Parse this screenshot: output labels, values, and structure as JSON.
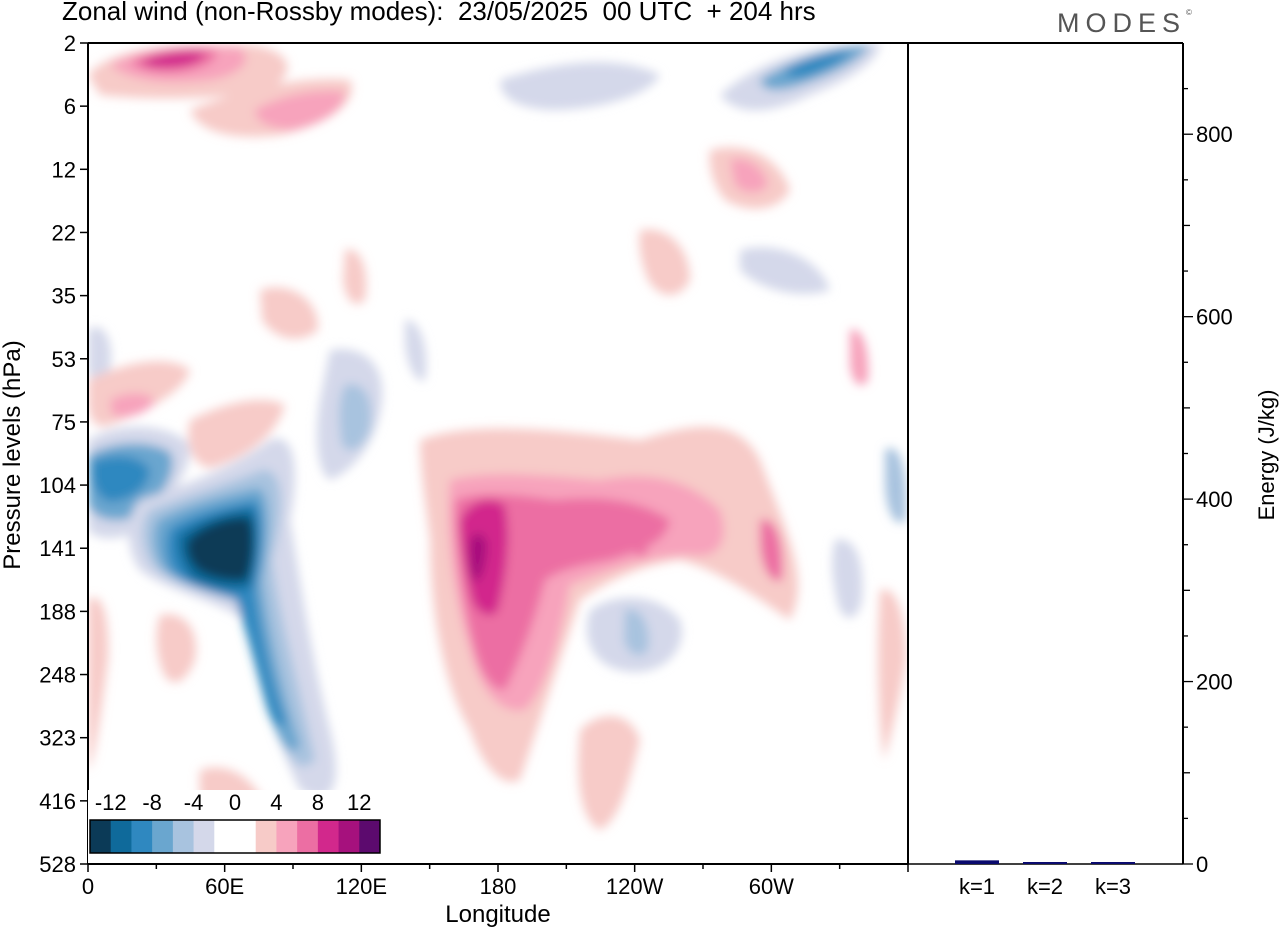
{
  "title": "Zonal wind (non-Rossby modes):  23/05/2025  00 UTC  + 204 hrs",
  "logo": "MODES",
  "logo_mark": "©",
  "chart_data": [
    {
      "type": "heatmap",
      "xlabel": "Longitude",
      "ylabel": "Pressure levels (hPa)",
      "x_ticks": [
        "0",
        "60E",
        "120E",
        "180",
        "120W",
        "60W"
      ],
      "x_tick_values": [
        0,
        60,
        120,
        180,
        240,
        300
      ],
      "xlim": [
        0,
        360
      ],
      "y_ticks": [
        "2",
        "6",
        "12",
        "22",
        "35",
        "53",
        "75",
        "104",
        "141",
        "188",
        "248",
        "323",
        "416",
        "528"
      ],
      "colorbar": {
        "labels": [
          "-12",
          "-8",
          "-4",
          "0",
          "4",
          "8",
          "12"
        ],
        "label_values": [
          -12,
          -8,
          -4,
          0,
          4,
          8,
          12
        ],
        "colors": [
          "#0b3a57",
          "#0f6a9b",
          "#2f88c0",
          "#6aa6cf",
          "#a8c3df",
          "#d4d8ea",
          "#ffffff",
          "#ffffff",
          "#f7cbc8",
          "#f7a3bc",
          "#ec6ea3",
          "#d2288c",
          "#a6117d",
          "#5c0a6e"
        ]
      },
      "features": [
        {
          "sign": "negative",
          "lon": [
            40,
            75
          ],
          "level": [
            104,
            188
          ],
          "peak": -14
        },
        {
          "sign": "negative",
          "lon": [
            0,
            35
          ],
          "level": [
            75,
            141
          ],
          "peak": -8
        },
        {
          "sign": "negative",
          "lon": [
            70,
            100
          ],
          "level": [
            141,
            416
          ],
          "peak": -6
        },
        {
          "sign": "positive",
          "lon": [
            160,
            195
          ],
          "level": [
            104,
            248
          ],
          "peak": 10
        },
        {
          "sign": "positive",
          "lon": [
            20,
            60
          ],
          "level": [
            2,
            6
          ],
          "peak": 9
        },
        {
          "sign": "negative",
          "lon": [
            300,
            345
          ],
          "level": [
            2,
            6
          ],
          "peak": -7
        }
      ]
    },
    {
      "type": "bar",
      "categories": [
        "k=1",
        "k=2",
        "k=3"
      ],
      "values": [
        4,
        2,
        1
      ],
      "ylabel": "Energy (J/kg)",
      "ylim": [
        0,
        900
      ],
      "y_ticks": [
        0,
        200,
        400,
        600,
        800
      ],
      "bar_color": "#0a0a6e"
    }
  ]
}
